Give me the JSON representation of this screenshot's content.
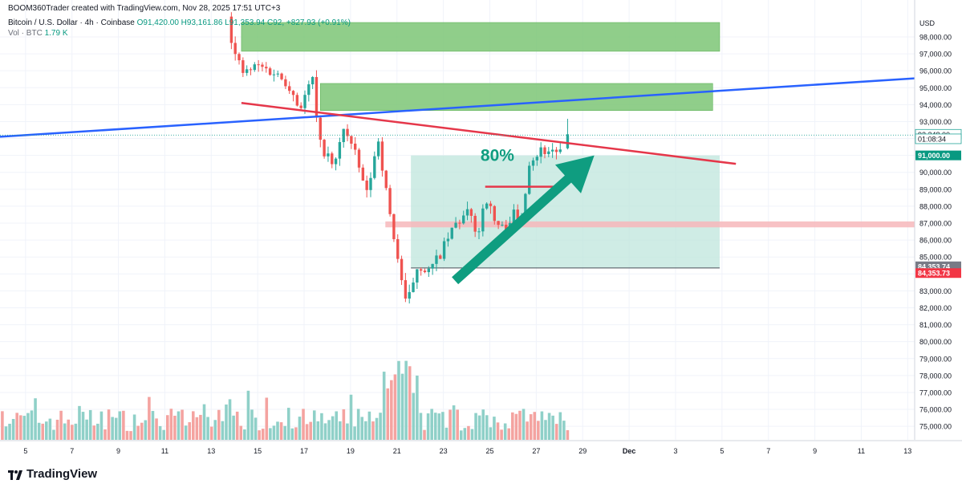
{
  "header": {
    "creator_line": "BOOM360Trader created with TradingView.com, Nov 28, 2025 17:51 UTC+3",
    "symbol": "Bitcoin / U.S. Dollar · 4h · Coinbase",
    "open": "O91,420.00",
    "high": "H93,161.86",
    "low": "L91,353.94",
    "close": "C92,",
    "change": "+827.93 (+0.91%)",
    "volume_label": "Vol · BTC",
    "volume_value": "1.79 K"
  },
  "currency": "USD",
  "brand": "TradingView",
  "colors": {
    "up": "#26a69a",
    "down": "#ef5350",
    "vol_up": "#8fd0c8",
    "vol_down": "#f4a3a0",
    "supply_zone": "#7cc576",
    "projection_box": "#bfe6dc",
    "level_band": "#f7b7bb",
    "trend_blue": "#2962ff",
    "trend_red": "#e5374a",
    "arrow": "#0f9d80",
    "label_green": "#089981",
    "label_red": "#f23645",
    "label_gray": "#787b86"
  },
  "chart_data": {
    "type": "candlestick",
    "title": "Bitcoin / U.S. Dollar · 4h · Coinbase",
    "ylim": [
      74200,
      99800
    ],
    "y_ticks": [
      75000,
      76000,
      77000,
      78000,
      79000,
      80000,
      81000,
      82000,
      83000,
      84000,
      85000,
      86000,
      87000,
      88000,
      89000,
      90000,
      91000,
      92000,
      93000,
      94000,
      95000,
      96000,
      97000,
      98000
    ],
    "y_tick_labels": [
      "75,000.00",
      "76,000.00",
      "77,000.00",
      "78,000.00",
      "79,000.00",
      "80,000.00",
      "81,000.00",
      "82,000.00",
      "83,000.00",
      "84,000.00",
      "85,000.00",
      "86,000.00",
      "87,000.00",
      "88,000.00",
      "89,000.00",
      "90,000.00",
      "91,000.00",
      "92,000.00",
      "93,000.00",
      "94,000.00",
      "95,000.00",
      "96,000.00",
      "97,000.00",
      "98,000.00"
    ],
    "x_ticks": [
      {
        "day": 5,
        "label": "5"
      },
      {
        "day": 7,
        "label": "7"
      },
      {
        "day": 9,
        "label": "9"
      },
      {
        "day": 11,
        "label": "11"
      },
      {
        "day": 13,
        "label": "13"
      },
      {
        "day": 15,
        "label": "15"
      },
      {
        "day": 17,
        "label": "17"
      },
      {
        "day": 19,
        "label": "19"
      },
      {
        "day": 21,
        "label": "21"
      },
      {
        "day": 23,
        "label": "23"
      },
      {
        "day": 25,
        "label": "25"
      },
      {
        "day": 27,
        "label": "27"
      },
      {
        "day": 29,
        "label": "29"
      },
      {
        "day": 31,
        "label": "Dec"
      },
      {
        "day": 33,
        "label": "3"
      },
      {
        "day": 35,
        "label": "5"
      },
      {
        "day": 37,
        "label": "7"
      },
      {
        "day": 39,
        "label": "9"
      },
      {
        "day": 41,
        "label": "11"
      },
      {
        "day": 43,
        "label": "13"
      }
    ],
    "x_range_days": [
      3.9,
      43.3
    ],
    "candle_anchors": [
      {
        "d": 13.7,
        "p": 99200
      },
      {
        "d": 14.0,
        "p": 97000
      },
      {
        "d": 14.4,
        "p": 95800
      },
      {
        "d": 15.0,
        "p": 96300
      },
      {
        "d": 15.7,
        "p": 95900
      },
      {
        "d": 16.3,
        "p": 95300
      },
      {
        "d": 16.8,
        "p": 93800
      },
      {
        "d": 17.4,
        "p": 95600
      },
      {
        "d": 17.6,
        "p": 91800
      },
      {
        "d": 17.9,
        "p": 91200
      },
      {
        "d": 18.3,
        "p": 90200
      },
      {
        "d": 18.7,
        "p": 92700
      },
      {
        "d": 19.2,
        "p": 91000
      },
      {
        "d": 19.7,
        "p": 88700
      },
      {
        "d": 20.2,
        "p": 92000
      },
      {
        "d": 20.6,
        "p": 88200
      },
      {
        "d": 21.0,
        "p": 85200
      },
      {
        "d": 21.4,
        "p": 82000
      },
      {
        "d": 21.9,
        "p": 84600
      },
      {
        "d": 22.4,
        "p": 84100
      },
      {
        "d": 23.0,
        "p": 85500
      },
      {
        "d": 23.5,
        "p": 86900
      },
      {
        "d": 24.1,
        "p": 87600
      },
      {
        "d": 24.5,
        "p": 86300
      },
      {
        "d": 24.8,
        "p": 88700
      },
      {
        "d": 25.2,
        "p": 87100
      },
      {
        "d": 25.6,
        "p": 86600
      },
      {
        "d": 26.0,
        "p": 87600
      },
      {
        "d": 26.3,
        "p": 86800
      },
      {
        "d": 26.7,
        "p": 90700
      },
      {
        "d": 27.2,
        "p": 91300
      },
      {
        "d": 27.8,
        "p": 91300
      },
      {
        "d": 28.2,
        "p": 91100
      },
      {
        "d": 28.35,
        "p": 92200
      }
    ],
    "last_candle": {
      "open": 91420.0,
      "high": 93161.86,
      "low": 91353.94,
      "close": 92248.0
    },
    "annotations": {
      "supply_zone_upper": {
        "price_top": 98850,
        "price_bottom": 97150,
        "from_day": 14.3,
        "to_day": 34.9
      },
      "supply_zone_lower": {
        "price_top": 95250,
        "price_bottom": 93650,
        "from_day": 17.7,
        "to_day": 34.6
      },
      "projection_box": {
        "price_top": 91000,
        "price_bottom": 84350,
        "from_day": 21.6,
        "to_day": 34.9
      },
      "level_band": {
        "price_top": 87100,
        "price_bottom": 86750,
        "from_day": 20.5,
        "to_day": 43.3
      },
      "blue_trendline": {
        "x1": 3.9,
        "y1": 92100,
        "x2": 43.3,
        "y2": 95550
      },
      "red_trendline": {
        "x1": 14.3,
        "y1": 94100,
        "x2": 35.6,
        "y2": 90500
      },
      "red_segment": {
        "x1": 24.8,
        "x2": 27.9,
        "price": 89150
      },
      "arrow": {
        "from_day": 23.5,
        "from_price": 83600,
        "to_day": 29.5,
        "to_price": 91000
      },
      "percent_label": "80%",
      "dotted_last_price": 92200
    },
    "price_labels": [
      {
        "text": "92,248.00",
        "price": 92248,
        "style": "outline"
      },
      {
        "text": "01:08:34",
        "price": 91980,
        "style": "outline"
      },
      {
        "text": "91,000.00",
        "price": 91000,
        "style": "green"
      },
      {
        "text": "84,353.74",
        "price": 84450,
        "style": "gray"
      },
      {
        "text": "84,353.73",
        "price": 84050,
        "style": "red"
      }
    ],
    "volume_ylim": [
      0,
      3.0
    ],
    "volume_bar_count": 155
  }
}
